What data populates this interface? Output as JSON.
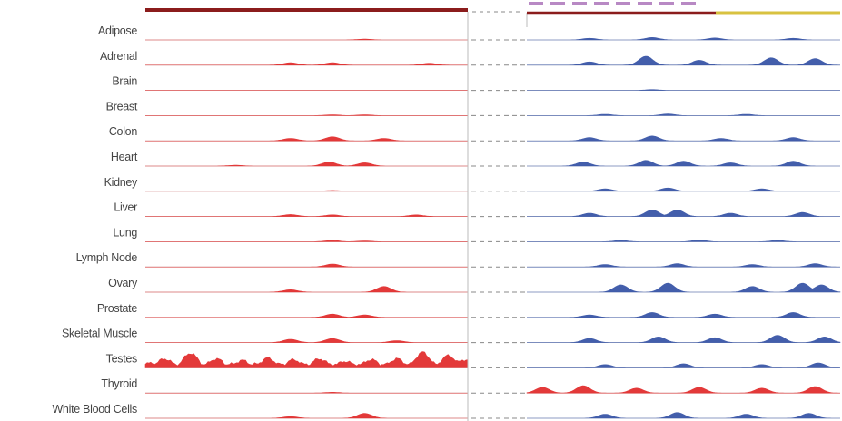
{
  "chart_data": {
    "type": "area",
    "title": "",
    "xlabel": "",
    "ylabel": "",
    "categories": [
      "Adipose",
      "Adrenal",
      "Brain",
      "Breast",
      "Colon",
      "Heart",
      "Kidney",
      "Liver",
      "Lung",
      "Lymph Node",
      "Ovary",
      "Prostate",
      "Skeletal Muscle",
      "Testes",
      "Thyroid",
      "White Blood Cells"
    ],
    "panels": [
      {
        "name": "",
        "color": "#e02424",
        "x_range": [
          0,
          100
        ],
        "y_range": [
          0,
          1
        ],
        "tracks": [
          {
            "tissue": "Adipose",
            "peaks": [
              [
                68,
                0.05
              ]
            ]
          },
          {
            "tissue": "Adrenal",
            "peaks": [
              [
                45,
                0.15
              ],
              [
                58,
                0.15
              ],
              [
                88,
                0.12
              ]
            ]
          },
          {
            "tissue": "Brain",
            "peaks": []
          },
          {
            "tissue": "Breast",
            "peaks": [
              [
                58,
                0.05
              ],
              [
                68,
                0.05
              ]
            ]
          },
          {
            "tissue": "Colon",
            "peaks": [
              [
                45,
                0.15
              ],
              [
                58,
                0.25
              ],
              [
                74,
                0.15
              ]
            ]
          },
          {
            "tissue": "Heart",
            "peaks": [
              [
                28,
                0.05
              ],
              [
                57,
                0.25
              ],
              [
                68,
                0.2
              ]
            ]
          },
          {
            "tissue": "Kidney",
            "peaks": [
              [
                58,
                0.05
              ]
            ]
          },
          {
            "tissue": "Liver",
            "peaks": [
              [
                45,
                0.12
              ],
              [
                58,
                0.1
              ],
              [
                84,
                0.1
              ]
            ]
          },
          {
            "tissue": "Lung",
            "peaks": [
              [
                58,
                0.08
              ],
              [
                68,
                0.05
              ]
            ]
          },
          {
            "tissue": "Lymph Node",
            "peaks": [
              [
                58,
                0.18
              ]
            ]
          },
          {
            "tissue": "Ovary",
            "peaks": [
              [
                45,
                0.15
              ],
              [
                74,
                0.35
              ]
            ]
          },
          {
            "tissue": "Prostate",
            "peaks": [
              [
                58,
                0.2
              ],
              [
                68,
                0.15
              ]
            ]
          },
          {
            "tissue": "Skeletal Muscle",
            "peaks": [
              [
                45,
                0.2
              ],
              [
                58,
                0.25
              ],
              [
                78,
                0.12
              ]
            ]
          },
          {
            "tissue": "Testes",
            "peaks": [
              [
                2,
                0.3
              ],
              [
                6,
                0.55
              ],
              [
                14,
                0.9
              ],
              [
                22,
                0.55
              ],
              [
                30,
                0.45
              ],
              [
                38,
                0.6
              ],
              [
                46,
                0.5
              ],
              [
                54,
                0.55
              ],
              [
                62,
                0.4
              ],
              [
                70,
                0.5
              ],
              [
                78,
                0.55
              ],
              [
                86,
                0.95
              ],
              [
                94,
                0.75
              ],
              [
                99,
                0.5
              ]
            ],
            "baseline": 0.22
          },
          {
            "tissue": "Thyroid",
            "peaks": [
              [
                58,
                0.05
              ]
            ]
          },
          {
            "tissue": "White Blood Cells",
            "peaks": [
              [
                45,
                0.1
              ],
              [
                68,
                0.3
              ]
            ]
          }
        ]
      },
      {
        "name": "",
        "color": "#2f4da3",
        "highlight_color": "#e02424",
        "x_range": [
          0,
          100
        ],
        "y_range": [
          0,
          1
        ],
        "tracks": [
          {
            "tissue": "Adipose",
            "peaks": [
              [
                20,
                0.1
              ],
              [
                40,
                0.15
              ],
              [
                60,
                0.12
              ],
              [
                85,
                0.1
              ]
            ]
          },
          {
            "tissue": "Adrenal",
            "peaks": [
              [
                20,
                0.2
              ],
              [
                38,
                0.55
              ],
              [
                55,
                0.3
              ],
              [
                78,
                0.45
              ],
              [
                92,
                0.4
              ]
            ]
          },
          {
            "tissue": "Brain",
            "peaks": [
              [
                40,
                0.05
              ]
            ]
          },
          {
            "tissue": "Breast",
            "peaks": [
              [
                25,
                0.08
              ],
              [
                45,
                0.1
              ],
              [
                70,
                0.08
              ]
            ]
          },
          {
            "tissue": "Colon",
            "peaks": [
              [
                20,
                0.2
              ],
              [
                40,
                0.3
              ],
              [
                62,
                0.15
              ],
              [
                85,
                0.2
              ]
            ]
          },
          {
            "tissue": "Heart",
            "peaks": [
              [
                18,
                0.25
              ],
              [
                38,
                0.35
              ],
              [
                50,
                0.3
              ],
              [
                65,
                0.2
              ],
              [
                85,
                0.3
              ]
            ]
          },
          {
            "tissue": "Kidney",
            "peaks": [
              [
                25,
                0.15
              ],
              [
                45,
                0.2
              ],
              [
                75,
                0.15
              ]
            ]
          },
          {
            "tissue": "Liver",
            "peaks": [
              [
                20,
                0.2
              ],
              [
                40,
                0.4
              ],
              [
                48,
                0.4
              ],
              [
                65,
                0.2
              ],
              [
                88,
                0.25
              ]
            ]
          },
          {
            "tissue": "Lung",
            "peaks": [
              [
                30,
                0.08
              ],
              [
                55,
                0.1
              ],
              [
                80,
                0.08
              ]
            ]
          },
          {
            "tissue": "Lymph Node",
            "peaks": [
              [
                25,
                0.15
              ],
              [
                48,
                0.2
              ],
              [
                72,
                0.15
              ],
              [
                92,
                0.2
              ]
            ]
          },
          {
            "tissue": "Ovary",
            "peaks": [
              [
                30,
                0.45
              ],
              [
                45,
                0.55
              ],
              [
                72,
                0.35
              ],
              [
                88,
                0.55
              ],
              [
                94,
                0.45
              ]
            ]
          },
          {
            "tissue": "Prostate",
            "peaks": [
              [
                20,
                0.15
              ],
              [
                40,
                0.3
              ],
              [
                60,
                0.2
              ],
              [
                85,
                0.3
              ]
            ]
          },
          {
            "tissue": "Skeletal Muscle",
            "peaks": [
              [
                20,
                0.25
              ],
              [
                42,
                0.35
              ],
              [
                60,
                0.3
              ],
              [
                80,
                0.45
              ],
              [
                95,
                0.35
              ]
            ]
          },
          {
            "tissue": "Testes",
            "peaks": [
              [
                25,
                0.2
              ],
              [
                50,
                0.25
              ],
              [
                75,
                0.2
              ],
              [
                93,
                0.3
              ]
            ]
          },
          {
            "tissue": "Thyroid",
            "peaks": [
              [
                5,
                0.35
              ],
              [
                18,
                0.45
              ],
              [
                35,
                0.3
              ],
              [
                55,
                0.35
              ],
              [
                75,
                0.3
              ],
              [
                92,
                0.4
              ]
            ],
            "highlight": true
          },
          {
            "tissue": "White Blood Cells",
            "peaks": [
              [
                25,
                0.25
              ],
              [
                48,
                0.35
              ],
              [
                70,
                0.25
              ],
              [
                90,
                0.3
              ]
            ]
          }
        ]
      }
    ]
  }
}
